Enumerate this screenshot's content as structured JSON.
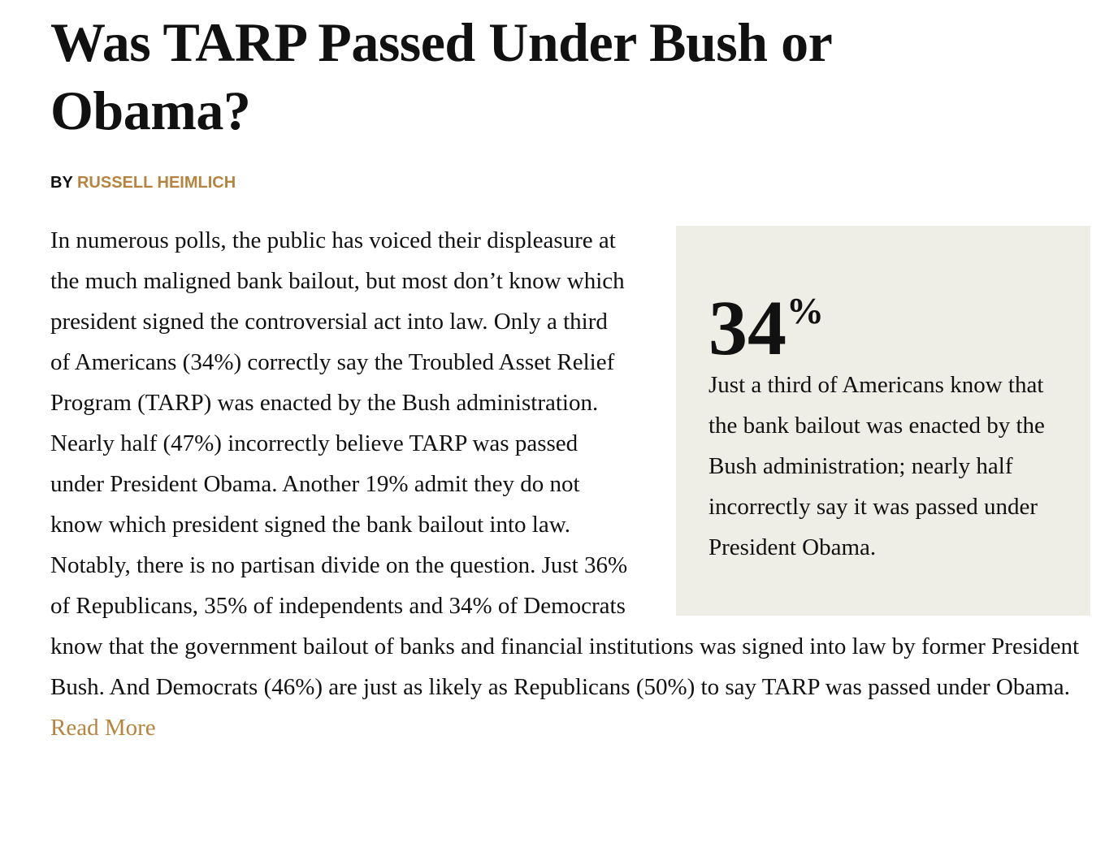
{
  "header": {
    "title": "Was TARP Passed Under Bush or Obama?",
    "byline": {
      "prefix": "BY",
      "author": "RUSSELL HEIMLICH"
    }
  },
  "pullquote": {
    "number": "34",
    "unit": "%",
    "text": "Just a third of Americans know that the bank bailout was enacted by the Bush administration; nearly half incorrectly say it was passed under President Obama."
  },
  "article": {
    "body": "In numerous polls, the public has voiced their displeasure at the much maligned bank bailout, but most don’t know which president signed the controversial act into law. Only a third of Americans (34%) correctly say the Troubled Asset Relief Program (TARP) was enacted by the Bush administration. Nearly half (47%) incorrectly believe TARP was passed under President Obama. Another 19% admit they do not know which president signed the bank bailout into law. Notably, there is no partisan divide on the question. Just 36% of Republicans, 35% of independents and 34% of Democrats know that the government bailout of banks and financial institutions was signed into law by former President Bush. And Democrats (46%) are just as likely as Republicans (50%) to say TARP was passed under Obama.",
    "read_more": "Read More"
  }
}
